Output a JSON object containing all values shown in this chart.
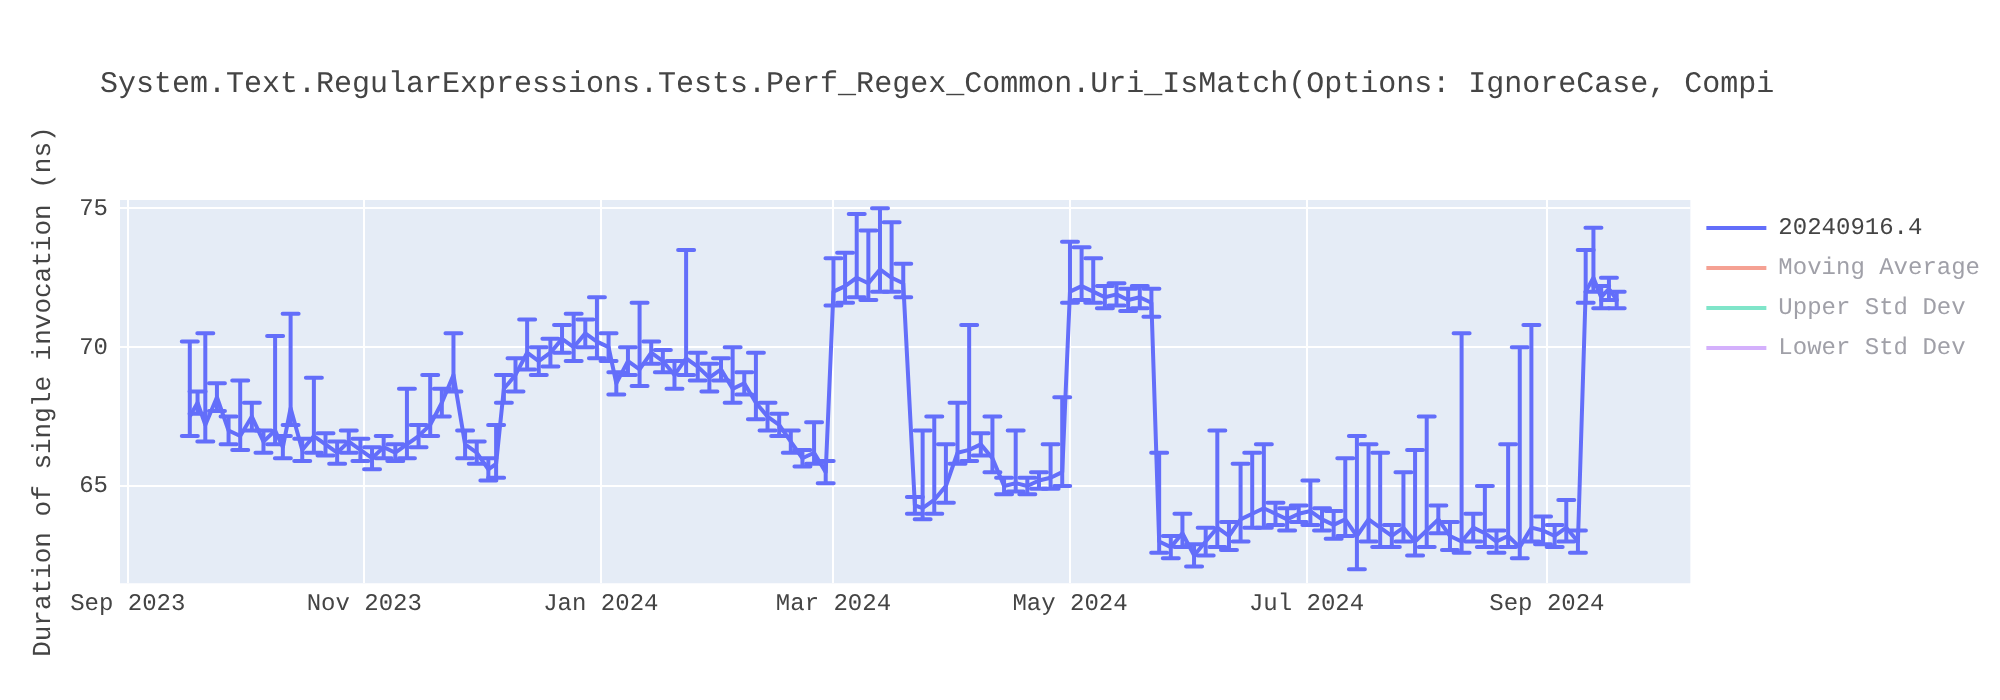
{
  "chart_data": {
    "type": "line",
    "title": "System.Text.RegularExpressions.Tests.Perf_Regex_Common.Uri_IsMatch(Options: IgnoreCase, Compi",
    "ylabel": "Duration of single invocation (ns)",
    "x": [
      "2023-09-17",
      "2023-09-19",
      "2023-09-21",
      "2023-09-24",
      "2023-09-27",
      "2023-09-30",
      "2023-10-03",
      "2023-10-06",
      "2023-10-09",
      "2023-10-11",
      "2023-10-13",
      "2023-10-16",
      "2023-10-19",
      "2023-10-22",
      "2023-10-25",
      "2023-10-28",
      "2023-10-31",
      "2023-11-03",
      "2023-11-06",
      "2023-11-09",
      "2023-11-12",
      "2023-11-15",
      "2023-11-18",
      "2023-11-21",
      "2023-11-24",
      "2023-11-27",
      "2023-11-30",
      "2023-12-03",
      "2023-12-05",
      "2023-12-07",
      "2023-12-10",
      "2023-12-13",
      "2023-12-16",
      "2023-12-19",
      "2023-12-22",
      "2023-12-25",
      "2023-12-28",
      "2023-12-31",
      "2024-01-03",
      "2024-01-05",
      "2024-01-08",
      "2024-01-11",
      "2024-01-14",
      "2024-01-17",
      "2024-01-20",
      "2024-01-23",
      "2024-01-26",
      "2024-01-29",
      "2024-02-01",
      "2024-02-04",
      "2024-02-07",
      "2024-02-10",
      "2024-02-13",
      "2024-02-16",
      "2024-02-19",
      "2024-02-22",
      "2024-02-25",
      "2024-02-28",
      "2024-03-01",
      "2024-03-04",
      "2024-03-07",
      "2024-03-10",
      "2024-03-13",
      "2024-03-16",
      "2024-03-19",
      "2024-03-22",
      "2024-03-24",
      "2024-03-27",
      "2024-03-30",
      "2024-04-02",
      "2024-04-05",
      "2024-04-08",
      "2024-04-11",
      "2024-04-14",
      "2024-04-17",
      "2024-04-20",
      "2024-04-23",
      "2024-04-26",
      "2024-04-29",
      "2024-05-01",
      "2024-05-04",
      "2024-05-07",
      "2024-05-10",
      "2024-05-13",
      "2024-05-16",
      "2024-05-19",
      "2024-05-22",
      "2024-05-24",
      "2024-05-27",
      "2024-05-30",
      "2024-06-02",
      "2024-06-05",
      "2024-06-08",
      "2024-06-11",
      "2024-06-14",
      "2024-06-17",
      "2024-06-20",
      "2024-06-23",
      "2024-06-26",
      "2024-06-29",
      "2024-07-02",
      "2024-07-05",
      "2024-07-08",
      "2024-07-11",
      "2024-07-14",
      "2024-07-17",
      "2024-07-20",
      "2024-07-23",
      "2024-07-26",
      "2024-07-29",
      "2024-08-01",
      "2024-08-04",
      "2024-08-07",
      "2024-08-10",
      "2024-08-13",
      "2024-08-16",
      "2024-08-19",
      "2024-08-22",
      "2024-08-25",
      "2024-08-28",
      "2024-08-31",
      "2024-09-03",
      "2024-09-06",
      "2024-09-09",
      "2024-09-11",
      "2024-09-13",
      "2024-09-15",
      "2024-09-17",
      "2024-09-19"
    ],
    "series": [
      {
        "name": "20240916.4",
        "color": "#636efa",
        "values": [
          67.5,
          68.0,
          67.2,
          68.2,
          67.0,
          66.8,
          67.5,
          66.6,
          67.0,
          66.4,
          67.8,
          66.3,
          66.8,
          66.5,
          66.2,
          66.6,
          66.3,
          66.0,
          66.4,
          66.2,
          66.5,
          66.8,
          67.2,
          68.0,
          69.0,
          66.5,
          66.2,
          65.6,
          65.8,
          68.5,
          69.0,
          69.8,
          69.5,
          69.8,
          70.3,
          70.0,
          70.5,
          70.2,
          70.0,
          68.7,
          69.5,
          69.2,
          69.8,
          69.5,
          69.0,
          69.6,
          69.3,
          68.9,
          69.2,
          68.5,
          68.7,
          68.0,
          67.5,
          67.2,
          66.6,
          66.0,
          66.2,
          65.5,
          72.0,
          72.2,
          72.5,
          72.3,
          72.8,
          72.5,
          72.3,
          64.3,
          64.2,
          64.5,
          65.0,
          66.2,
          66.3,
          66.5,
          66.0,
          65.0,
          65.1,
          65.0,
          65.2,
          65.3,
          65.5,
          72.0,
          72.2,
          72.0,
          71.8,
          71.9,
          71.7,
          71.8,
          71.6,
          63.0,
          62.8,
          63.3,
          62.5,
          63.0,
          63.5,
          63.2,
          63.8,
          64.0,
          64.2,
          64.0,
          63.8,
          64.0,
          64.1,
          63.8,
          63.6,
          63.8,
          63.2,
          63.8,
          63.5,
          63.2,
          63.5,
          63.0,
          63.4,
          63.8,
          63.2,
          63.0,
          63.5,
          63.3,
          63.0,
          63.2,
          62.8,
          63.5,
          63.4,
          63.2,
          63.5,
          63.0,
          72.0,
          72.5,
          71.8,
          72.1,
          71.7
        ],
        "errors": [
          [
            66.8,
            70.2
          ],
          0.4,
          [
            66.6,
            70.5
          ],
          0.5,
          0.5,
          [
            66.3,
            68.8
          ],
          0.5,
          0.4,
          [
            66.5,
            70.4
          ],
          0.4,
          [
            67.2,
            71.2
          ],
          0.4,
          [
            66.2,
            68.9
          ],
          0.4,
          0.4,
          0.4,
          0.4,
          0.4,
          0.4,
          0.3,
          [
            66.0,
            68.5
          ],
          0.4,
          [
            66.8,
            69.0
          ],
          0.5,
          [
            68.4,
            70.5
          ],
          0.5,
          0.4,
          0.4,
          [
            65.3,
            67.2
          ],
          0.5,
          0.6,
          [
            69.2,
            71.0
          ],
          0.5,
          0.5,
          0.5,
          [
            69.5,
            71.2
          ],
          0.5,
          [
            69.6,
            71.8
          ],
          0.5,
          0.4,
          0.5,
          [
            68.6,
            71.6
          ],
          0.4,
          0.4,
          0.5,
          [
            69.0,
            73.5
          ],
          0.5,
          0.5,
          0.4,
          [
            68.0,
            70.0
          ],
          0.4,
          [
            67.4,
            69.8
          ],
          0.5,
          0.4,
          0.4,
          0.3,
          [
            65.8,
            67.3
          ],
          0.4,
          [
            71.5,
            73.2
          ],
          [
            71.6,
            73.4
          ],
          [
            71.8,
            74.8
          ],
          [
            71.7,
            74.2
          ],
          [
            72.0,
            75.0
          ],
          [
            72.0,
            74.5
          ],
          [
            71.8,
            73.0
          ],
          0.3,
          [
            63.8,
            67.0
          ],
          [
            64.0,
            67.5
          ],
          [
            64.4,
            66.5
          ],
          [
            65.8,
            68.0
          ],
          [
            65.9,
            70.8
          ],
          0.4,
          [
            65.5,
            67.5
          ],
          0.3,
          [
            64.8,
            67.0
          ],
          0.3,
          0.3,
          [
            64.9,
            66.5
          ],
          [
            65.0,
            68.2
          ],
          [
            71.6,
            73.8
          ],
          [
            71.7,
            73.6
          ],
          [
            71.6,
            73.2
          ],
          0.4,
          0.4,
          0.4,
          0.4,
          0.5,
          [
            62.6,
            66.2
          ],
          0.4,
          [
            62.8,
            64.0
          ],
          0.4,
          0.5,
          [
            62.8,
            67.0
          ],
          0.5,
          [
            63.0,
            65.8
          ],
          [
            63.5,
            66.2
          ],
          [
            63.5,
            66.5
          ],
          0.4,
          0.4,
          0.3,
          [
            63.6,
            65.2
          ],
          0.4,
          0.5,
          [
            63.2,
            66.0
          ],
          [
            62.0,
            66.8
          ],
          [
            63.0,
            66.5
          ],
          [
            62.8,
            66.2
          ],
          0.4,
          [
            63.0,
            65.5
          ],
          [
            62.5,
            66.3
          ],
          [
            62.8,
            67.5
          ],
          0.5,
          0.5,
          [
            62.6,
            70.5
          ],
          0.5,
          [
            62.8,
            65.0
          ],
          0.4,
          [
            62.8,
            66.5
          ],
          [
            62.4,
            70.0
          ],
          [
            63.0,
            70.8
          ],
          0.5,
          0.4,
          [
            63.0,
            64.5
          ],
          0.4,
          [
            71.6,
            73.5
          ],
          [
            72.0,
            74.3
          ],
          0.4,
          0.4,
          0.3
        ]
      },
      {
        "name": "Moving Average",
        "color": "#f5a193",
        "values": [
          null,
          null,
          null,
          null,
          null,
          null,
          null,
          null,
          null,
          null,
          null,
          null,
          null,
          null,
          null,
          null,
          null,
          null,
          null,
          null,
          null,
          null,
          null,
          null,
          null,
          null,
          null,
          null,
          null,
          null,
          null,
          null,
          null,
          null,
          null,
          null,
          null,
          null,
          null,
          null,
          null,
          null,
          null,
          null,
          null,
          null,
          null,
          null,
          null,
          null,
          null,
          null,
          null,
          null,
          null,
          null,
          null,
          null,
          null,
          null,
          null,
          null,
          null,
          null,
          null,
          null,
          null,
          null,
          null,
          null,
          null,
          null,
          null,
          null,
          null,
          null,
          null,
          null,
          null,
          null,
          null,
          null,
          null,
          null,
          null,
          null,
          null,
          null,
          null,
          null,
          null,
          null,
          null,
          null,
          null,
          null,
          null,
          null,
          null,
          null,
          null,
          null,
          null,
          null,
          null,
          null,
          null,
          null,
          null,
          null,
          null,
          null,
          null,
          null,
          null,
          null,
          null,
          null,
          null,
          null,
          null,
          null,
          null,
          null,
          null,
          null,
          null,
          null,
          null
        ]
      },
      {
        "name": "Upper Std Dev",
        "color": "#7fe5c9",
        "values": [
          null,
          null,
          null,
          null,
          null,
          null,
          null,
          null,
          null,
          null,
          null,
          null,
          null,
          null,
          null,
          null,
          null,
          null,
          null,
          null,
          null,
          null,
          null,
          null,
          null,
          null,
          null,
          null,
          null,
          null,
          null,
          null,
          null,
          null,
          null,
          null,
          null,
          null,
          null,
          null,
          null,
          null,
          null,
          null,
          null,
          null,
          null,
          null,
          null,
          null,
          null,
          null,
          null,
          null,
          null,
          null,
          null,
          null,
          null,
          null,
          null,
          null,
          null,
          null,
          null,
          null,
          null,
          null,
          null,
          null,
          null,
          null,
          null,
          null,
          null,
          null,
          null,
          null,
          null,
          null,
          null,
          null,
          null,
          null,
          null,
          null,
          null,
          null,
          null,
          null,
          null,
          null,
          null,
          null,
          null,
          null,
          null,
          null,
          null,
          null,
          null,
          null,
          null,
          null,
          null,
          null,
          null,
          null,
          null,
          null,
          null,
          null,
          null,
          null,
          null,
          null,
          null,
          null,
          null,
          null,
          null,
          null,
          null,
          null,
          null,
          null,
          null,
          null,
          null
        ]
      },
      {
        "name": "Lower Std Dev",
        "color": "#d4b0fc",
        "values": [
          null,
          null,
          null,
          null,
          null,
          null,
          null,
          null,
          null,
          null,
          null,
          null,
          null,
          null,
          null,
          null,
          null,
          null,
          null,
          null,
          null,
          null,
          null,
          null,
          null,
          null,
          null,
          null,
          null,
          null,
          null,
          null,
          null,
          null,
          null,
          null,
          null,
          null,
          null,
          null,
          null,
          null,
          null,
          null,
          null,
          null,
          null,
          null,
          null,
          null,
          null,
          null,
          null,
          null,
          null,
          null,
          null,
          null,
          null,
          null,
          null,
          null,
          null,
          null,
          null,
          null,
          null,
          null,
          null,
          null,
          null,
          null,
          null,
          null,
          null,
          null,
          null,
          null,
          null,
          null,
          null,
          null,
          null,
          null,
          null,
          null,
          null,
          null,
          null,
          null,
          null,
          null,
          null,
          null,
          null,
          null,
          null,
          null,
          null,
          null,
          null,
          null,
          null,
          null,
          null,
          null,
          null,
          null,
          null,
          null,
          null,
          null,
          null,
          null,
          null,
          null,
          null,
          null,
          null,
          null,
          null,
          null,
          null,
          null,
          null,
          null,
          null,
          null,
          null
        ]
      }
    ],
    "xlim": [
      "2023-08-30",
      "2024-10-08"
    ],
    "ylim": [
      61.5,
      75.3
    ],
    "xticks": [
      {
        "value": "2023-09-01",
        "label": "Sep 2023"
      },
      {
        "value": "2023-11-01",
        "label": "Nov 2023"
      },
      {
        "value": "2024-01-01",
        "label": "Jan 2024"
      },
      {
        "value": "2024-03-01",
        "label": "Mar 2024"
      },
      {
        "value": "2024-05-01",
        "label": "May 2024"
      },
      {
        "value": "2024-07-01",
        "label": "Jul 2024"
      },
      {
        "value": "2024-09-01",
        "label": "Sep 2024"
      }
    ],
    "yticks": [
      65,
      70,
      75
    ],
    "grid": true,
    "legend": "top right"
  }
}
